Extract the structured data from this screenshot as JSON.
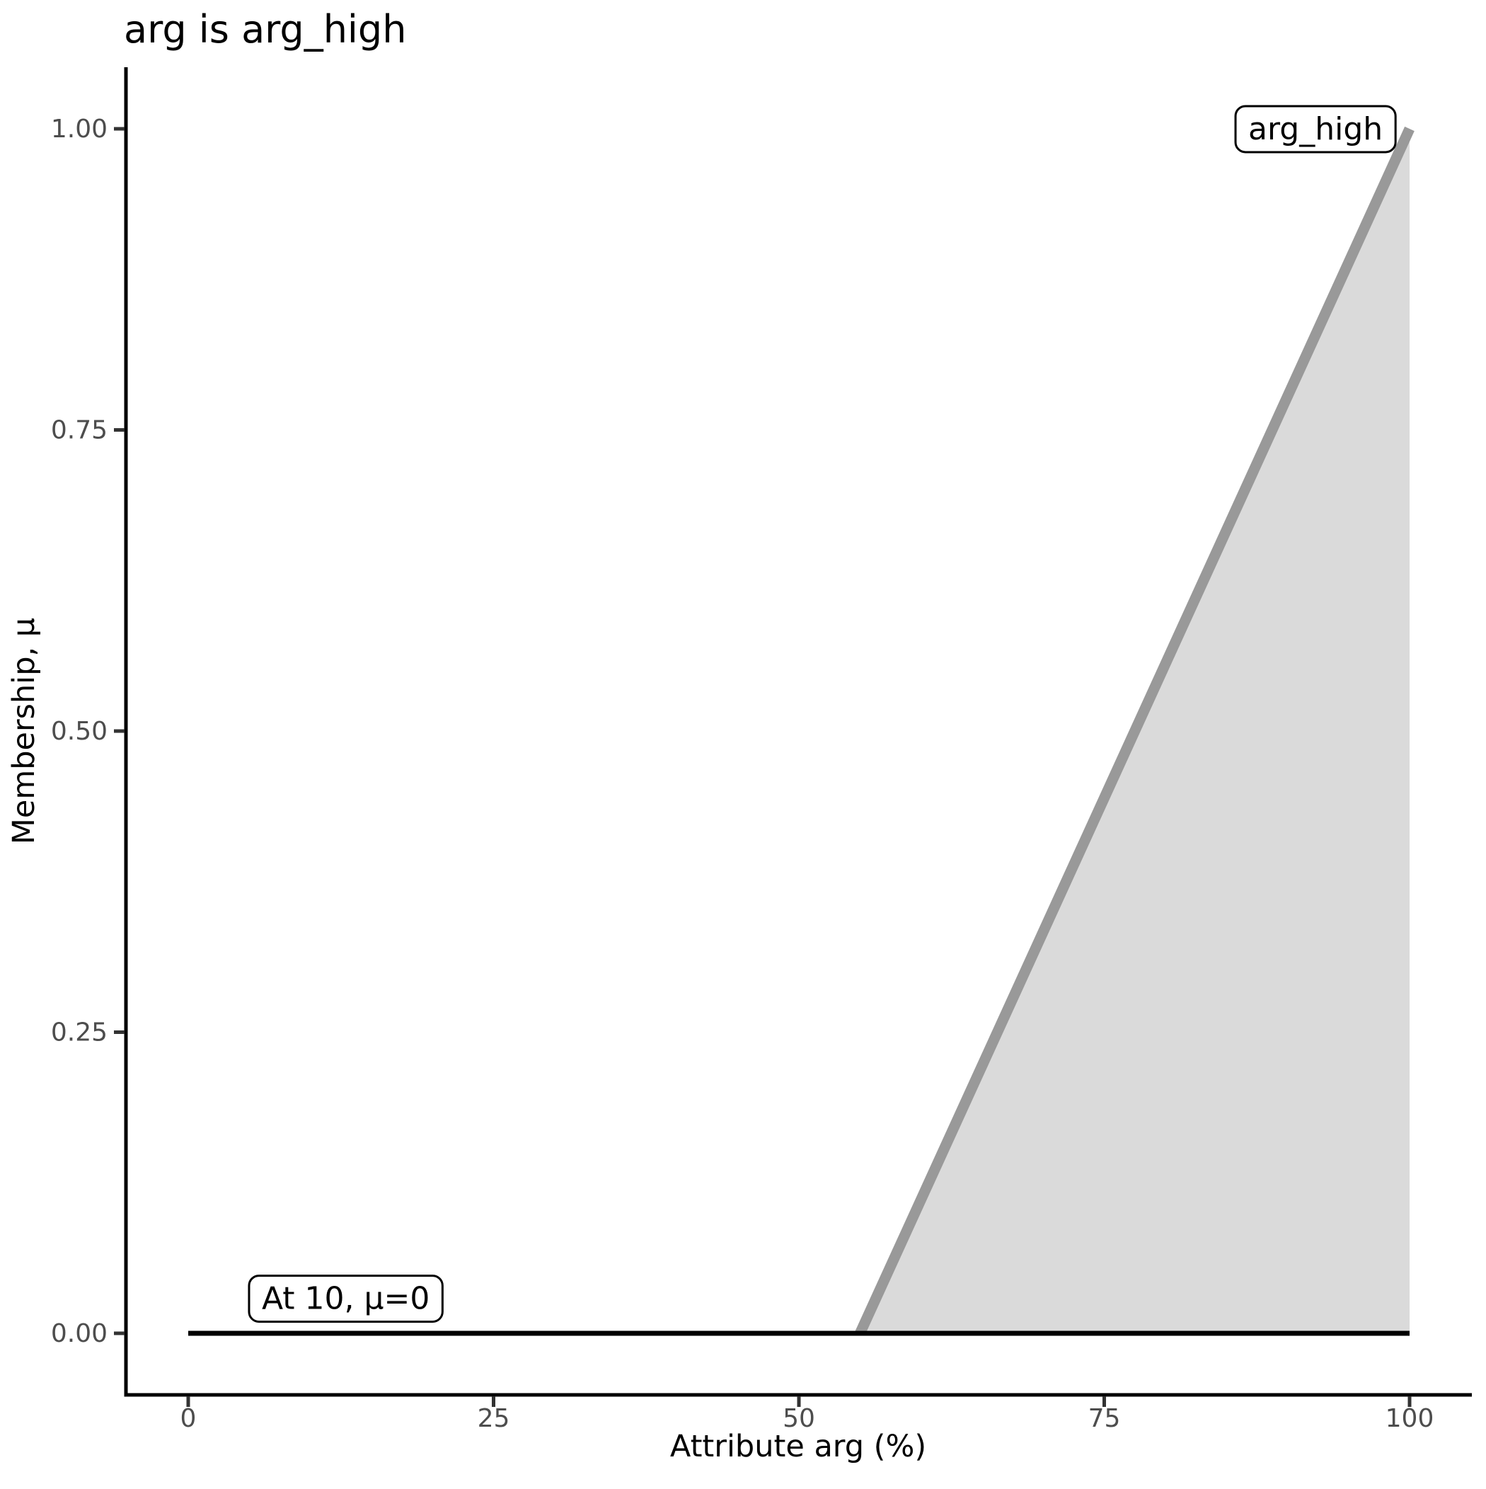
{
  "chart_data": {
    "type": "area",
    "title": "arg is arg_high",
    "xlabel": "Attribute arg (%)",
    "ylabel": "Membership, μ",
    "xlim": [
      0,
      100
    ],
    "ylim": [
      0,
      1
    ],
    "grid": "off",
    "x_ticks": [
      {
        "value": 0,
        "label": "0"
      },
      {
        "value": 25,
        "label": "25"
      },
      {
        "value": 50,
        "label": "50"
      },
      {
        "value": 75,
        "label": "75"
      },
      {
        "value": 100,
        "label": "100"
      }
    ],
    "y_ticks": [
      {
        "value": 0,
        "label": "0.00"
      },
      {
        "value": 0.25,
        "label": "0.25"
      },
      {
        "value": 0.5,
        "label": "0.50"
      },
      {
        "value": 0.75,
        "label": "0.75"
      },
      {
        "value": 1,
        "label": "1.00"
      }
    ],
    "series": [
      {
        "name": "arg_high",
        "role": "membership",
        "description": "fuzzy membership ramp, filled to baseline",
        "points": [
          [
            55,
            0
          ],
          [
            100,
            1
          ]
        ],
        "filled": true
      },
      {
        "name": "evaluation-level",
        "role": "evaluation",
        "description": "horizontal line at membership of evaluated point",
        "points": [
          [
            0,
            0
          ],
          [
            100,
            0
          ]
        ],
        "filled": false
      }
    ],
    "annotations": [
      {
        "name": "set-label",
        "text": "arg_high",
        "x": 92.3,
        "y": 1.0
      },
      {
        "name": "evaluation-label",
        "text": "At 10, μ=0",
        "x": 12.9,
        "y": 0.029
      }
    ]
  },
  "colors": {
    "background": "#FFFFFF",
    "membership_fill": "#DADADA",
    "membership_line": "#999999",
    "evaluation_line": "#000000",
    "axis_line": "#000000",
    "tick_mark": "#333333",
    "tick_label": "#4D4D4D",
    "text": "#000000",
    "annotation_fill": "#FFFFFF",
    "annotation_border": "#000000"
  }
}
